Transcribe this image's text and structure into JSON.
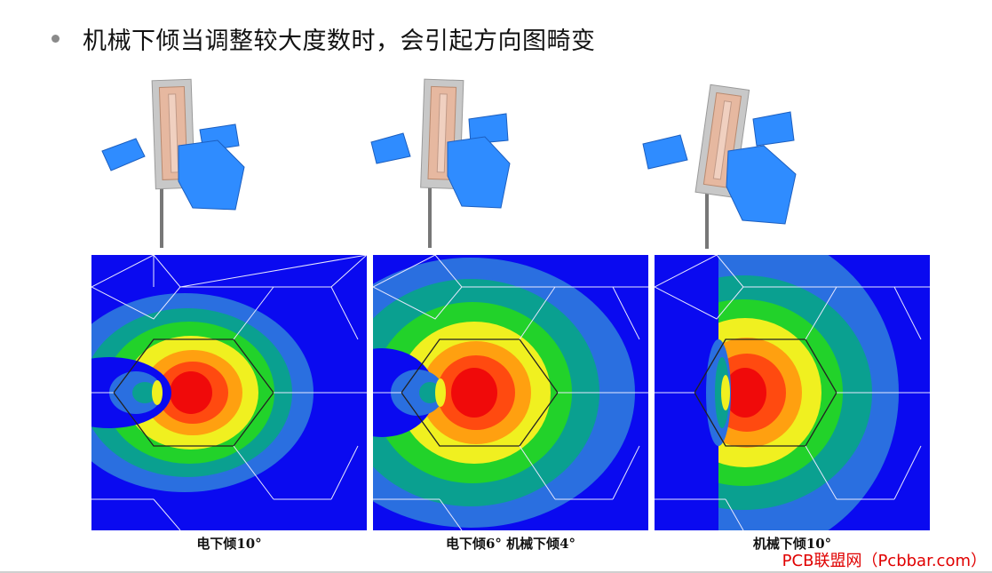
{
  "slide": {
    "bullet": "机械下倾当调整较大度数时，会引起方向图畸变"
  },
  "panels": [
    {
      "caption": "电下倾10°"
    },
    {
      "caption": "电下倾6° 机械下倾4°"
    },
    {
      "caption": "机械下倾10°"
    }
  ],
  "watermark": "PCB联盟网（Pcbbar.com）",
  "colors": {
    "background_blue": "#0a0af0",
    "contour_levels": [
      "#0a0af0",
      "#2a6fe0",
      "#0aa090",
      "#22d22a",
      "#f0f020",
      "#ffa010",
      "#ff4a10",
      "#f00a0a"
    ],
    "beam_blue": "#2f8cff"
  }
}
